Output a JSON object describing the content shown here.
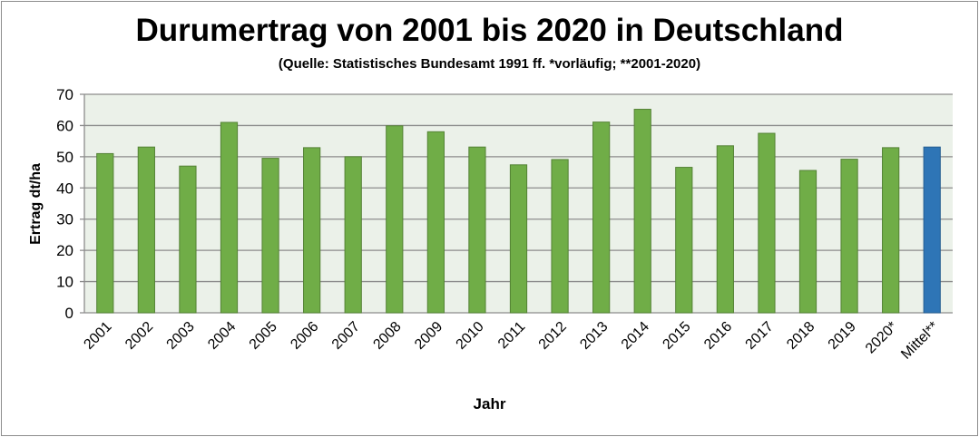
{
  "chart_data": {
    "type": "bar",
    "title": "Durumertrag von 2001 bis 2020 in Deutschland",
    "subtitle": "(Quelle: Statistisches Bundesamt 1991 ff. *vorläufig; **2001-2020)",
    "xlabel": "Jahr",
    "ylabel": "Ertrag dt/ha",
    "ylim": [
      0,
      70
    ],
    "yticks": [
      0,
      10,
      20,
      30,
      40,
      50,
      60,
      70
    ],
    "grid": true,
    "categories": [
      "2001",
      "2002",
      "2003",
      "2004",
      "2005",
      "2006",
      "2007",
      "2008",
      "2009",
      "2010",
      "2011",
      "2012",
      "2013",
      "2014",
      "2015",
      "2016",
      "2017",
      "2018",
      "2019",
      "2020*",
      "Mittel**"
    ],
    "values": [
      51.0,
      53.1,
      47.0,
      61.0,
      49.5,
      52.9,
      50.0,
      59.9,
      58.0,
      53.1,
      47.4,
      49.1,
      61.1,
      65.2,
      46.6,
      53.5,
      57.5,
      45.6,
      49.2,
      52.9,
      53.1
    ],
    "colors": {
      "bar": "#70ad47",
      "bar_border": "#548235",
      "mean_bar": "#2e75b6",
      "plot_bg": "#ebf1e9",
      "grid": "#8c8c8c"
    }
  }
}
